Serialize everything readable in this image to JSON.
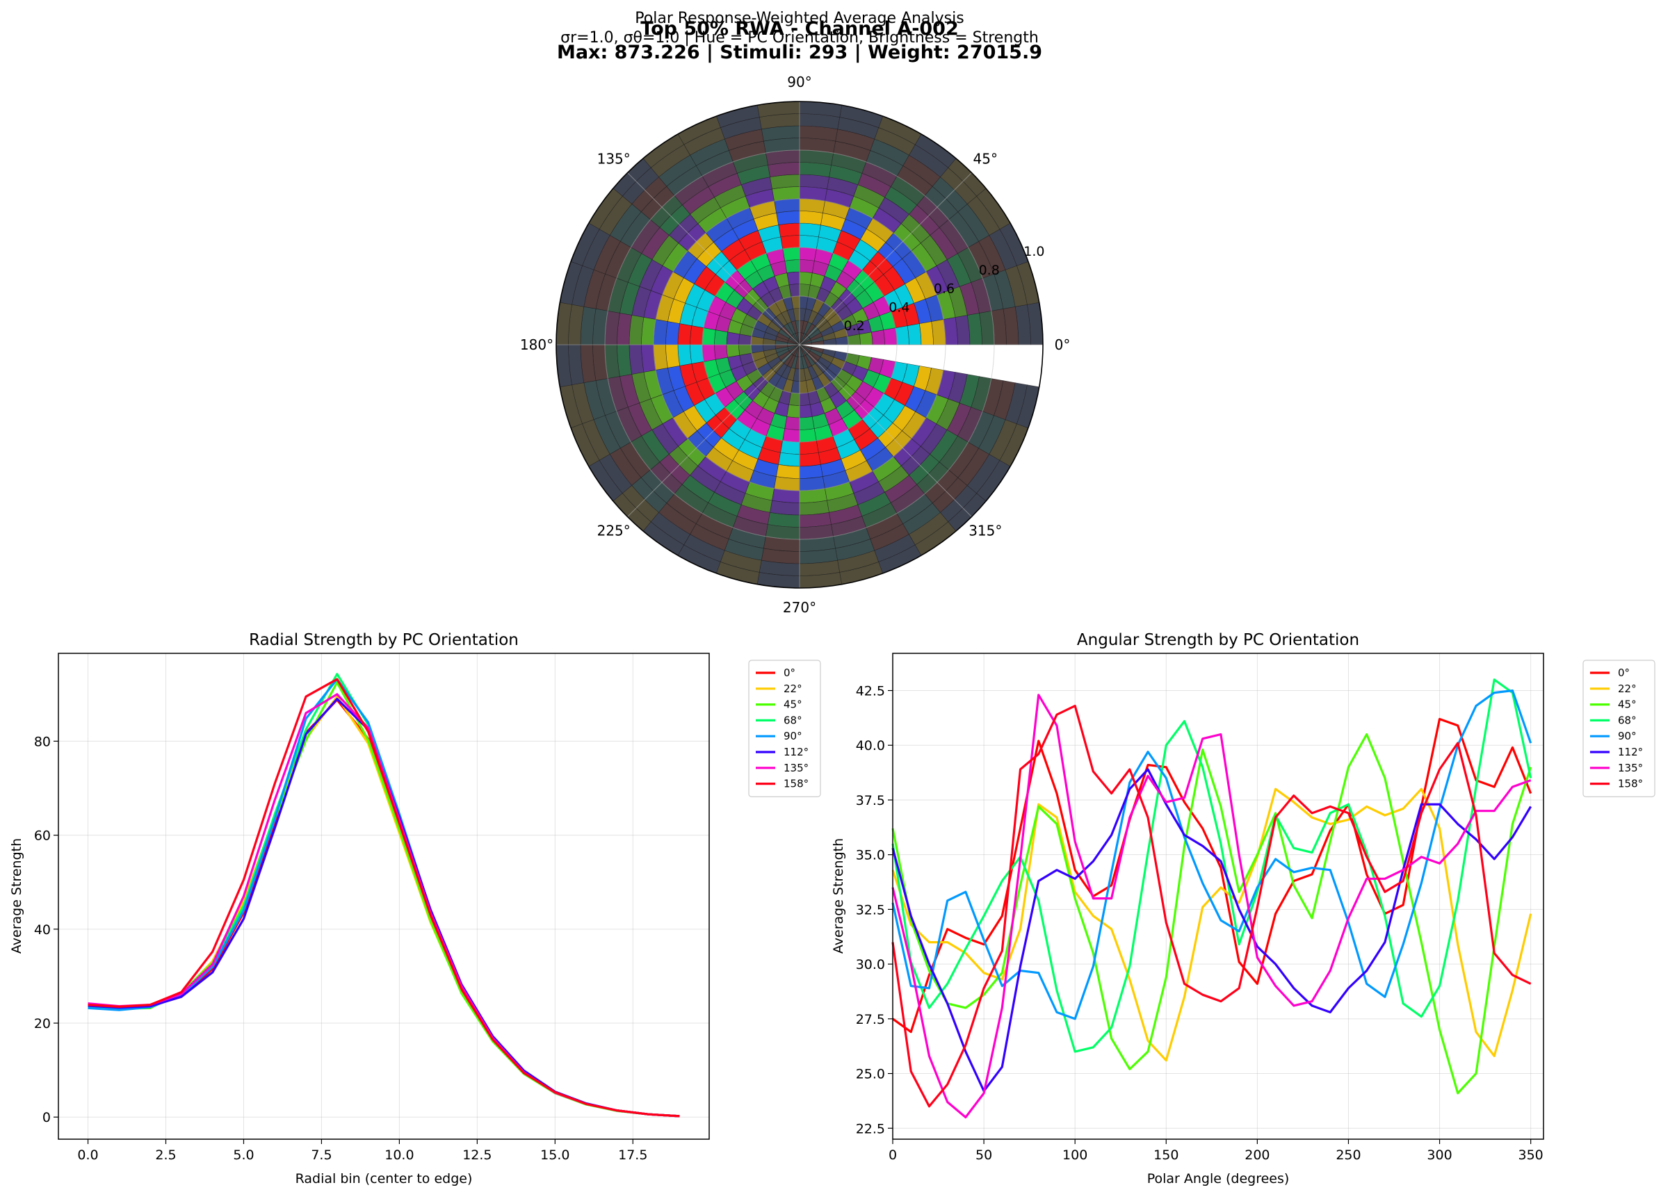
{
  "figure": {
    "suptitle_line1": "Top 50% RWA - Channel A-002",
    "suptitle_line2": "Max: 873.226 | Stimuli: 293 | Weight: 27015.9"
  },
  "chart_data": [
    {
      "type": "heatmap",
      "subtype": "polar",
      "title_line1": "Polar Response-Weighted Average Analysis",
      "title_line2": "σr=1.0, σθ=1.0 | Hue = PC Orientation, Brightness = Strength",
      "angle_tick_labels": [
        "0°",
        "45°",
        "90°",
        "135°",
        "180°",
        "225°",
        "270°",
        "315°"
      ],
      "radial_tick_labels": [
        "0.2",
        "0.4",
        "0.6",
        "0.8",
        "1.0"
      ],
      "rlim": [
        0,
        1
      ],
      "radial_bins": 20,
      "angular_bins": 36,
      "color_encoding": "hue = PC orientation, brightness = strength",
      "background": "#404040",
      "grid": true
    },
    {
      "type": "line",
      "title": "Radial Strength by PC Orientation",
      "xlabel": "Radial bin (center to edge)",
      "ylabel": "Average Strength",
      "xlim": [
        -0.95,
        19.95
      ],
      "ylim": [
        -4.7,
        98.7
      ],
      "xticks": [
        0,
        2.5,
        5,
        7.5,
        10,
        12.5,
        15,
        17.5
      ],
      "xtick_labels": [
        "0.0",
        "2.5",
        "5.0",
        "7.5",
        "10.0",
        "12.5",
        "15.0",
        "17.5"
      ],
      "yticks": [
        0,
        20,
        40,
        60,
        80
      ],
      "ytick_labels": [
        "0",
        "20",
        "40",
        "60",
        "80"
      ],
      "grid": true,
      "legend": "outside-right",
      "x": [
        0,
        1,
        2,
        3,
        4,
        5,
        6,
        7,
        8,
        9,
        10,
        11,
        12,
        13,
        14,
        15,
        16,
        17,
        18,
        19
      ],
      "series": [
        {
          "name": "0°",
          "color": "#ff0000",
          "values": [
            23.8,
            23.5,
            23.6,
            25.8,
            31.5,
            43.5,
            62,
            81.8,
            88.8,
            80.5,
            62,
            42.5,
            27,
            16.5,
            9.5,
            5.3,
            2.8,
            1.4,
            0.6,
            0.2
          ]
        },
        {
          "name": "22°",
          "color": "#ffcc00",
          "values": [
            23.6,
            23.2,
            23.3,
            26.2,
            33.2,
            46,
            64,
            80.5,
            89.5,
            79.5,
            60.5,
            41.5,
            26.5,
            16.2,
            9.3,
            5.2,
            2.7,
            1.4,
            0.6,
            0.2
          ]
        },
        {
          "name": "45°",
          "color": "#4cff00",
          "values": [
            23.5,
            23.1,
            23.2,
            26.5,
            32.8,
            45,
            63.5,
            80.2,
            92.5,
            80.2,
            61.2,
            41.8,
            26.3,
            16.1,
            9.2,
            5.1,
            2.7,
            1.3,
            0.6,
            0.2
          ]
        },
        {
          "name": "68°",
          "color": "#00ff66",
          "values": [
            23.4,
            23.0,
            23.4,
            26.0,
            32.5,
            44.8,
            64.5,
            82.5,
            94.3,
            83.5,
            63.5,
            43.5,
            27.5,
            16.8,
            9.6,
            5.3,
            2.8,
            1.4,
            0.6,
            0.2
          ]
        },
        {
          "name": "90°",
          "color": "#0099ff",
          "values": [
            23.2,
            22.8,
            23.4,
            25.9,
            32,
            44,
            63.5,
            84.8,
            93.2,
            84,
            64.5,
            44,
            27.8,
            17.1,
            9.8,
            5.4,
            2.9,
            1.4,
            0.6,
            0.2
          ]
        },
        {
          "name": "112°",
          "color": "#3300ff",
          "values": [
            23.7,
            23.3,
            23.6,
            25.6,
            30.8,
            42.2,
            61.5,
            81.5,
            89,
            82.5,
            63.8,
            44.2,
            28.2,
            17.2,
            9.9,
            5.4,
            2.9,
            1.4,
            0.6,
            0.2
          ]
        },
        {
          "name": "135°",
          "color": "#ff00cc",
          "values": [
            24.2,
            23.6,
            23.9,
            26.2,
            32.5,
            47,
            67.5,
            86,
            90,
            82.8,
            63.2,
            43.5,
            27.8,
            16.8,
            9.5,
            5.2,
            2.8,
            1.4,
            0.6,
            0.2
          ]
        },
        {
          "name": "158°",
          "color": "#ff0019",
          "values": [
            23.9,
            23.5,
            23.9,
            26.6,
            35.2,
            50.5,
            71,
            89.5,
            93.2,
            82,
            62.5,
            43,
            27.2,
            16.5,
            9.4,
            5.3,
            2.8,
            1.4,
            0.6,
            0.2
          ]
        }
      ]
    },
    {
      "type": "line",
      "title": "Angular Strength by PC Orientation",
      "xlabel": "Polar Angle (degrees)",
      "ylabel": "Average Strength",
      "xlim": [
        0,
        357
      ],
      "ylim": [
        22.0,
        44.2
      ],
      "xticks": [
        0,
        50,
        100,
        150,
        200,
        250,
        300,
        350
      ],
      "xtick_labels": [
        "0",
        "50",
        "100",
        "150",
        "200",
        "250",
        "300",
        "350"
      ],
      "yticks": [
        22.5,
        25,
        27.5,
        30,
        32.5,
        35,
        37.5,
        40,
        42.5
      ],
      "ytick_labels": [
        "22.5",
        "25.0",
        "27.5",
        "30.0",
        "32.5",
        "35.0",
        "37.5",
        "40.0",
        "42.5"
      ],
      "grid": true,
      "legend": "outside-right",
      "x": [
        0,
        10,
        20,
        30,
        40,
        50,
        60,
        70,
        80,
        90,
        100,
        110,
        120,
        130,
        140,
        150,
        160,
        170,
        180,
        190,
        200,
        210,
        220,
        230,
        240,
        250,
        260,
        270,
        280,
        290,
        300,
        310,
        320,
        330,
        340,
        350
      ],
      "series": [
        {
          "name": "0°",
          "color": "#ff0000",
          "values": [
            27.5,
            26.9,
            29.5,
            31.6,
            31.2,
            30.9,
            32.2,
            36.2,
            40.2,
            37.8,
            34.3,
            33.1,
            33.6,
            36.6,
            39.1,
            39.0,
            37.4,
            36.2,
            34.4,
            30.1,
            29.1,
            32.3,
            33.8,
            34.1,
            36.1,
            37.3,
            34.1,
            32.3,
            32.7,
            37.2,
            41.2,
            40.9,
            38.4,
            38.1,
            39.9,
            37.8
          ]
        },
        {
          "name": "22°",
          "color": "#ffcc00",
          "values": [
            34.3,
            31.8,
            31.0,
            31.0,
            30.5,
            29.6,
            29.3,
            31.6,
            37.3,
            36.7,
            33.3,
            32.2,
            31.6,
            29.3,
            26.5,
            25.6,
            28.5,
            32.6,
            33.5,
            32.8,
            34.9,
            38.0,
            37.4,
            36.7,
            36.4,
            36.6,
            37.2,
            36.8,
            37.1,
            38.0,
            36.2,
            30.9,
            26.9,
            25.8,
            28.8,
            32.3
          ]
        },
        {
          "name": "45°",
          "color": "#4cff00",
          "values": [
            36.2,
            32.0,
            29.7,
            28.2,
            28.0,
            28.6,
            29.6,
            33.6,
            37.2,
            36.4,
            33.0,
            30.5,
            26.6,
            25.2,
            26.0,
            29.4,
            35.4,
            39.8,
            37.2,
            33.3,
            35.0,
            36.9,
            33.6,
            32.1,
            35.6,
            39.0,
            40.5,
            38.5,
            34.7,
            31.0,
            27.0,
            24.1,
            25.0,
            30.8,
            36.4,
            39.0
          ]
        },
        {
          "name": "68°",
          "color": "#00ff66",
          "values": [
            35.5,
            30.1,
            28.0,
            29.1,
            30.7,
            32.2,
            33.8,
            34.9,
            32.9,
            28.8,
            26.0,
            26.2,
            27.1,
            29.9,
            35.1,
            40.0,
            41.1,
            39.0,
            35.5,
            30.9,
            33.3,
            36.8,
            35.3,
            35.1,
            36.9,
            37.3,
            35.1,
            32.2,
            28.2,
            27.6,
            29.0,
            32.9,
            38.1,
            43.0,
            42.4,
            38.5
          ]
        },
        {
          "name": "90°",
          "color": "#0099ff",
          "values": [
            32.8,
            29.0,
            28.9,
            32.9,
            33.3,
            31.1,
            29.0,
            29.7,
            29.6,
            27.8,
            27.5,
            29.9,
            34.2,
            38.3,
            39.7,
            38.5,
            35.8,
            33.7,
            32.0,
            31.5,
            33.5,
            34.8,
            34.2,
            34.4,
            34.3,
            31.9,
            29.1,
            28.5,
            30.9,
            33.7,
            37.1,
            40.0,
            41.8,
            42.4,
            42.5,
            40.1
          ]
        },
        {
          "name": "112°",
          "color": "#3300ff",
          "values": [
            35.3,
            32.2,
            30.0,
            28.2,
            26.0,
            24.2,
            25.3,
            29.9,
            33.8,
            34.3,
            33.9,
            34.7,
            35.9,
            38.0,
            38.9,
            37.3,
            35.9,
            35.4,
            34.7,
            32.5,
            30.8,
            30.0,
            28.9,
            28.1,
            27.8,
            28.9,
            29.7,
            31.0,
            34.3,
            37.3,
            37.3,
            36.4,
            35.7,
            34.8,
            35.8,
            37.2
          ]
        },
        {
          "name": "135°",
          "color": "#ff00cc",
          "values": [
            33.5,
            30.0,
            25.8,
            23.7,
            23.0,
            24.1,
            28.0,
            34.8,
            42.3,
            40.9,
            35.6,
            33.0,
            33.0,
            36.7,
            38.6,
            37.4,
            37.6,
            40.3,
            40.5,
            35.0,
            30.3,
            29.0,
            28.1,
            28.3,
            29.7,
            32.1,
            33.9,
            33.9,
            34.3,
            34.9,
            34.6,
            35.5,
            37.0,
            37.0,
            38.1,
            38.4
          ]
        },
        {
          "name": "158°",
          "color": "#ff0019",
          "values": [
            31.0,
            25.1,
            23.5,
            24.5,
            26.3,
            28.9,
            30.6,
            38.9,
            39.6,
            41.4,
            41.8,
            38.8,
            37.8,
            38.9,
            36.7,
            31.9,
            29.1,
            28.6,
            28.3,
            28.9,
            32.6,
            36.7,
            37.7,
            36.9,
            37.2,
            36.9,
            34.9,
            33.3,
            33.8,
            36.9,
            38.9,
            40.1,
            36.8,
            30.5,
            29.5,
            29.1
          ]
        }
      ]
    }
  ]
}
